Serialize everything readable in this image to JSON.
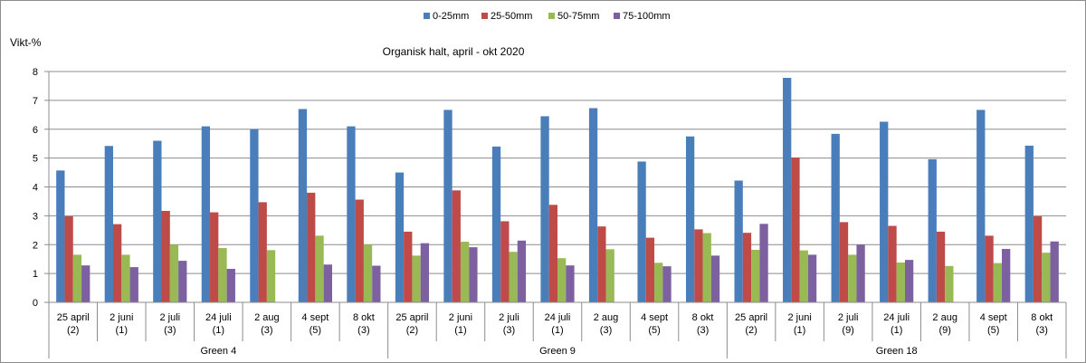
{
  "chart_data": {
    "type": "bar",
    "title": "Organisk halt, april - okt 2020",
    "ylabel": "Vikt-%",
    "xlabel": "",
    "ylim": [
      0,
      8
    ],
    "yticks": [
      0,
      1,
      2,
      3,
      4,
      5,
      6,
      7,
      8
    ],
    "grid": true,
    "legend_position": "top-center",
    "groups": [
      {
        "name": "Green 4",
        "categories": [
          "25 april (2)",
          "2 juni (1)",
          "2 juli (3)",
          "24 juli (1)",
          "2 aug (3)",
          "4 sept (5)",
          "8 okt (3)"
        ]
      },
      {
        "name": "Green 9",
        "categories": [
          "25 april (2)",
          "2 juni (1)",
          "2 juli (3)",
          "24 juli (1)",
          "2 aug (3)",
          "4 sept (5)",
          "8 okt (3)"
        ]
      },
      {
        "name": "Green 18",
        "categories": [
          "25 april (2)",
          "2 juni (1)",
          "2 juli (9)",
          "24 juli (1)",
          "2 aug (9)",
          "4 sept (5)",
          "8 okt (3)"
        ]
      }
    ],
    "series": [
      {
        "name": "0-25mm",
        "color": "#4a7ebb",
        "values": [
          4.57,
          5.42,
          5.6,
          6.1,
          6.0,
          6.7,
          6.1,
          4.5,
          6.67,
          5.4,
          6.45,
          6.73,
          4.88,
          5.75,
          4.22,
          7.78,
          5.84,
          6.26,
          4.96,
          6.67,
          5.43
        ]
      },
      {
        "name": "25-50mm",
        "color": "#be4b48",
        "values": [
          2.98,
          2.71,
          3.17,
          3.12,
          3.47,
          3.8,
          3.56,
          2.45,
          3.88,
          2.81,
          3.38,
          2.63,
          2.24,
          2.53,
          2.41,
          5.02,
          2.78,
          2.65,
          2.45,
          2.31,
          2.98
        ]
      },
      {
        "name": "50-75mm",
        "color": "#98b954",
        "values": [
          1.65,
          1.65,
          2.0,
          1.88,
          1.81,
          2.31,
          2.0,
          1.62,
          2.1,
          1.75,
          1.53,
          1.84,
          1.37,
          2.4,
          1.82,
          1.8,
          1.65,
          1.38,
          1.26,
          1.36,
          1.72
        ]
      },
      {
        "name": "75-100mm",
        "color": "#7d60a0",
        "values": [
          1.28,
          1.22,
          1.44,
          1.16,
          null,
          1.31,
          1.27,
          2.05,
          1.91,
          2.14,
          1.28,
          null,
          1.25,
          1.62,
          2.72,
          1.65,
          2.0,
          1.47,
          null,
          1.85,
          2.11
        ]
      }
    ]
  }
}
